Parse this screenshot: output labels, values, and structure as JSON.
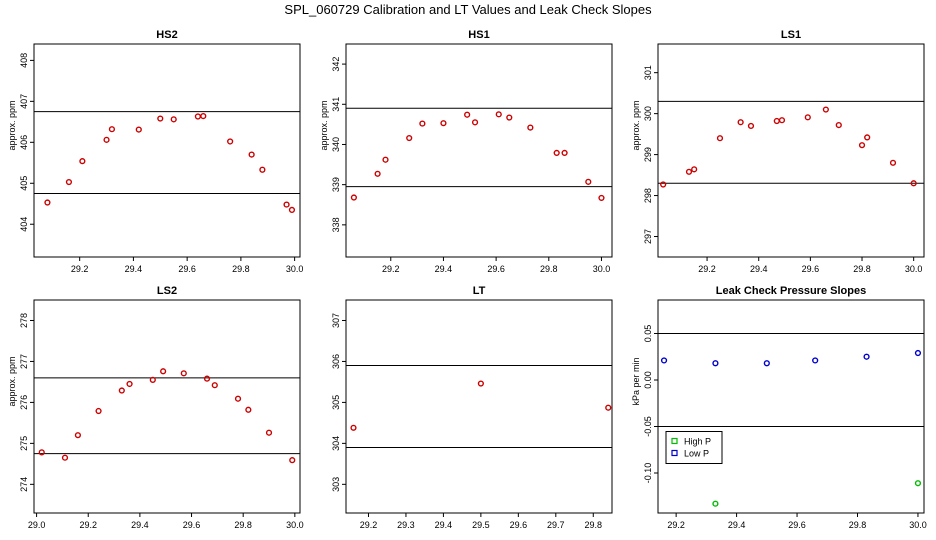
{
  "figure": {
    "title": "SPL_060729  Calibration and LT Values and Leak Check Slopes"
  },
  "chart_data": [
    {
      "type": "scatter",
      "title": "HS2",
      "ylabel": "approx. ppm",
      "xlim": [
        29.03,
        30.02
      ],
      "ylim": [
        403.2,
        408.4
      ],
      "xticks": [
        29.2,
        29.4,
        29.6,
        29.8,
        30.0
      ],
      "xtick_labels": [
        "29.2",
        "29.4",
        "29.6",
        "29.8",
        "30.0"
      ],
      "yticks": [
        404,
        405,
        406,
        407,
        408
      ],
      "ytick_labels": [
        "404",
        "405",
        "406",
        "407",
        "408"
      ],
      "hlines": [
        404.75,
        406.75
      ],
      "series": [
        {
          "color": "#cc0000",
          "x": [
            29.08,
            29.16,
            29.21,
            29.3,
            29.32,
            29.42,
            29.5,
            29.55,
            29.64,
            29.66,
            29.76,
            29.84,
            29.88,
            29.97,
            29.99
          ],
          "y": [
            404.53,
            405.03,
            405.54,
            406.06,
            406.32,
            406.31,
            406.58,
            406.56,
            406.63,
            406.64,
            406.02,
            405.7,
            405.33,
            404.48,
            404.35
          ]
        }
      ]
    },
    {
      "type": "scatter",
      "title": "HS1",
      "ylabel": "approx. ppm",
      "xlim": [
        29.03,
        30.04
      ],
      "ylim": [
        337.2,
        342.5
      ],
      "xticks": [
        29.2,
        29.4,
        29.6,
        29.8,
        30.0
      ],
      "xtick_labels": [
        "29.2",
        "29.4",
        "29.6",
        "29.8",
        "30.0"
      ],
      "yticks": [
        338,
        339,
        340,
        341,
        342
      ],
      "ytick_labels": [
        "338",
        "339",
        "340",
        "341",
        "342"
      ],
      "hlines": [
        338.95,
        340.9
      ],
      "series": [
        {
          "color": "#cc0000",
          "x": [
            29.06,
            29.15,
            29.18,
            29.27,
            29.32,
            29.4,
            29.49,
            29.52,
            29.61,
            29.65,
            29.73,
            29.83,
            29.86,
            29.95,
            30.0
          ],
          "y": [
            338.68,
            339.27,
            339.62,
            340.16,
            340.52,
            340.53,
            340.74,
            340.55,
            340.75,
            340.67,
            340.42,
            339.79,
            339.79,
            339.07,
            338.67
          ]
        }
      ]
    },
    {
      "type": "scatter",
      "title": "LS1",
      "ylabel": "approx. ppm",
      "xlim": [
        29.01,
        30.04
      ],
      "ylim": [
        296.5,
        301.7
      ],
      "xticks": [
        29.2,
        29.4,
        29.6,
        29.8,
        30.0
      ],
      "xtick_labels": [
        "29.2",
        "29.4",
        "29.6",
        "29.8",
        "30.0"
      ],
      "yticks": [
        297,
        298,
        299,
        300,
        301
      ],
      "ytick_labels": [
        "297",
        "298",
        "299",
        "300",
        "301"
      ],
      "hlines": [
        298.3,
        300.3
      ],
      "series": [
        {
          "color": "#cc0000",
          "x": [
            29.03,
            29.13,
            29.15,
            29.25,
            29.33,
            29.37,
            29.47,
            29.49,
            29.59,
            29.66,
            29.71,
            29.8,
            29.82,
            29.92,
            30.0
          ],
          "y": [
            298.27,
            298.58,
            298.64,
            299.4,
            299.79,
            299.7,
            299.82,
            299.84,
            299.91,
            300.1,
            299.72,
            299.23,
            299.42,
            298.8,
            298.3
          ]
        }
      ]
    },
    {
      "type": "scatter",
      "title": "LS2",
      "ylabel": "approx. ppm",
      "xlim": [
        28.99,
        30.02
      ],
      "ylim": [
        273.3,
        278.5
      ],
      "xticks": [
        29.0,
        29.2,
        29.4,
        29.6,
        29.8,
        30.0
      ],
      "xtick_labels": [
        "29.0",
        "29.2",
        "29.4",
        "29.6",
        "29.8",
        "30.0"
      ],
      "yticks": [
        274,
        275,
        276,
        277,
        278
      ],
      "ytick_labels": [
        "274",
        "275",
        "276",
        "277",
        "278"
      ],
      "hlines": [
        274.75,
        276.6
      ],
      "series": [
        {
          "color": "#cc0000",
          "x": [
            29.02,
            29.11,
            29.16,
            29.24,
            29.33,
            29.36,
            29.45,
            29.49,
            29.57,
            29.66,
            29.69,
            29.78,
            29.82,
            29.9,
            29.99
          ],
          "y": [
            274.78,
            274.65,
            275.2,
            275.79,
            276.29,
            276.45,
            276.55,
            276.76,
            276.71,
            276.58,
            276.42,
            276.09,
            275.82,
            275.26,
            274.59
          ]
        }
      ]
    },
    {
      "type": "scatter",
      "title": "LT",
      "ylabel": "",
      "xlim": [
        29.14,
        29.85
      ],
      "ylim": [
        302.3,
        307.5
      ],
      "xticks": [
        29.2,
        29.3,
        29.4,
        29.5,
        29.6,
        29.7,
        29.8
      ],
      "xtick_labels": [
        "29.2",
        "29.3",
        "29.4",
        "29.5",
        "29.6",
        "29.7",
        "29.8"
      ],
      "yticks": [
        303,
        304,
        305,
        306,
        307
      ],
      "ytick_labels": [
        "303",
        "304",
        "305",
        "306",
        "307"
      ],
      "hlines": [
        303.9,
        305.9
      ],
      "series": [
        {
          "color": "#cc0000",
          "x": [
            29.16,
            29.5,
            29.84
          ],
          "y": [
            304.38,
            305.46,
            304.87
          ]
        }
      ]
    },
    {
      "type": "scatter",
      "title": "Leak Check Pressure Slopes",
      "ylabel": "kPa per min",
      "xlim": [
        29.14,
        30.02
      ],
      "ylim": [
        -0.143,
        0.086
      ],
      "xticks": [
        29.2,
        29.4,
        29.6,
        29.8,
        30.0
      ],
      "xtick_labels": [
        "29.2",
        "29.4",
        "29.6",
        "29.8",
        "30.0"
      ],
      "yticks": [
        -0.1,
        -0.05,
        0.0,
        0.05
      ],
      "ytick_labels": [
        "-0.10",
        "-0.05",
        "0.00",
        "0.05"
      ],
      "hlines": [
        0.05,
        -0.05
      ],
      "legend": {
        "position": "left-middle"
      },
      "series": [
        {
          "name": "High P",
          "color": "#00bb00",
          "marker": "circle",
          "x": [
            29.33,
            30.0
          ],
          "y": [
            -0.133,
            -0.111
          ]
        },
        {
          "name": "Low P",
          "color": "#0000cc",
          "marker": "circle",
          "x": [
            29.16,
            29.33,
            29.5,
            29.66,
            29.83,
            30.0
          ],
          "y": [
            0.021,
            0.018,
            0.018,
            0.021,
            0.025,
            0.029
          ]
        }
      ]
    }
  ]
}
